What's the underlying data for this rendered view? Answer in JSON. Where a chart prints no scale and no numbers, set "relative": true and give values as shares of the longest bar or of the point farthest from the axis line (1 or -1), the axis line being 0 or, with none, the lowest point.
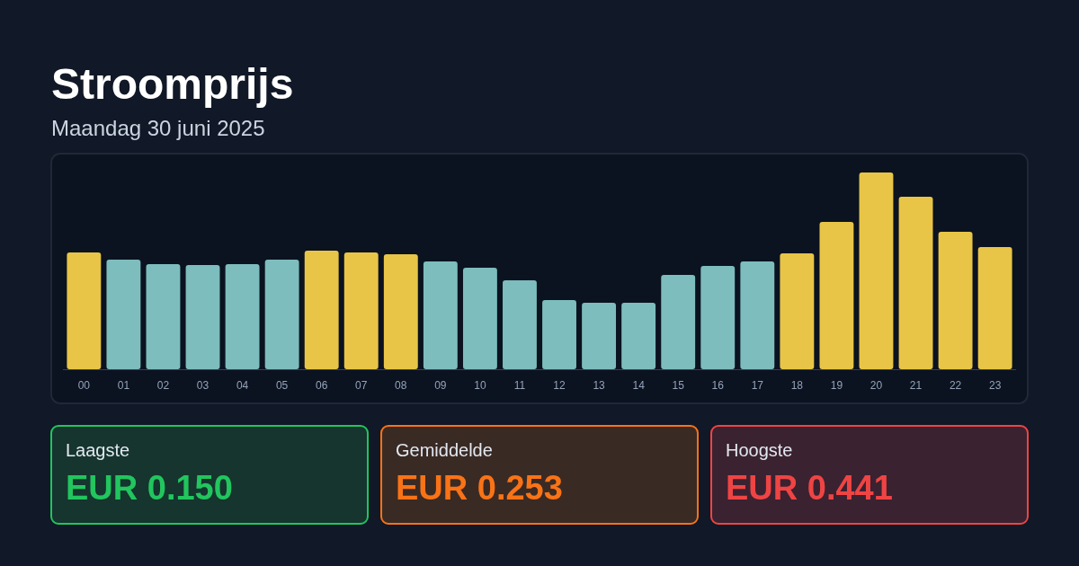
{
  "chart_data": {
    "type": "bar",
    "title": "Stroomprijs",
    "subtitle": "Maandag 30 juni 2025",
    "categories": [
      "00",
      "01",
      "02",
      "03",
      "04",
      "05",
      "06",
      "07",
      "08",
      "09",
      "10",
      "11",
      "12",
      "13",
      "14",
      "15",
      "16",
      "17",
      "18",
      "19",
      "20",
      "21",
      "22",
      "23"
    ],
    "values": [
      0.594,
      0.557,
      0.534,
      0.53,
      0.534,
      0.557,
      0.603,
      0.594,
      0.584,
      0.548,
      0.516,
      0.452,
      0.352,
      0.338,
      0.338,
      0.479,
      0.525,
      0.548,
      0.589,
      0.749,
      1,
      0.877,
      0.699,
      0.621
    ],
    "colors": [
      "#e8c547",
      "#7dbdbd",
      "#7dbdbd",
      "#7dbdbd",
      "#7dbdbd",
      "#7dbdbd",
      "#e8c547",
      "#e8c547",
      "#e8c547",
      "#7dbdbd",
      "#7dbdbd",
      "#7dbdbd",
      "#7dbdbd",
      "#7dbdbd",
      "#7dbdbd",
      "#7dbdbd",
      "#7dbdbd",
      "#7dbdbd",
      "#e8c547",
      "#e8c547",
      "#e8c547",
      "#e8c547",
      "#e8c547",
      "#e8c547"
    ],
    "relative": true,
    "annotations": [
      "Laagste",
      "EUR 0.150",
      "Gemiddelde",
      "EUR 0.253",
      "Hoogste",
      "EUR 0.441"
    ]
  }
}
